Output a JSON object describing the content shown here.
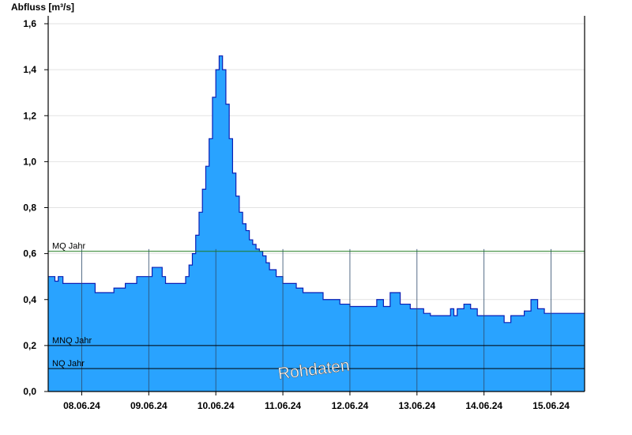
{
  "chart_data": {
    "type": "area",
    "ylabel": "Abfluss [m³/s]",
    "ylim": [
      0,
      1.6
    ],
    "yticks": [
      "0,0",
      "0,2",
      "0,4",
      "0,6",
      "0,8",
      "1,0",
      "1,2",
      "1,4",
      "1,6"
    ],
    "x_categories": [
      "08.06.24",
      "09.06.24",
      "10.06.24",
      "11.06.24",
      "12.06.24",
      "13.06.24",
      "14.06.24",
      "15.06.24"
    ],
    "xlim_days": [
      7.5,
      15.5
    ],
    "series": [
      {
        "x": [
          7.5,
          7.6,
          7.65,
          7.72,
          8.0,
          8.12,
          8.2,
          8.4,
          8.48,
          8.65,
          8.82,
          8.9,
          9.0,
          9.05,
          9.1,
          9.2,
          9.25,
          9.5,
          9.55,
          9.6,
          9.65,
          9.7,
          9.75,
          9.8,
          9.85,
          9.9,
          9.95,
          10.0,
          10.05,
          10.1,
          10.15,
          10.2,
          10.25,
          10.3,
          10.35,
          10.4,
          10.45,
          10.5,
          10.55,
          10.6,
          10.65,
          10.7,
          10.75,
          10.8,
          10.9,
          11.0,
          11.1,
          11.2,
          11.3,
          11.45,
          11.6,
          11.75,
          11.85,
          12.0,
          12.1,
          12.25,
          12.4,
          12.5,
          12.6,
          12.75,
          12.9,
          13.1,
          13.2,
          13.3,
          13.35,
          13.42,
          13.5,
          13.55,
          13.6,
          13.7,
          13.8,
          13.9,
          14.0,
          14.1,
          14.2,
          14.3,
          14.4,
          14.5,
          14.6,
          14.7,
          14.8,
          14.9,
          15.0,
          15.1,
          15.2,
          15.3,
          15.35,
          15.42,
          15.5
        ],
        "values": [
          0.5,
          0.48,
          0.5,
          0.47,
          0.47,
          0.47,
          0.43,
          0.43,
          0.45,
          0.47,
          0.5,
          0.5,
          0.5,
          0.54,
          0.54,
          0.5,
          0.47,
          0.47,
          0.5,
          0.55,
          0.6,
          0.68,
          0.78,
          0.88,
          0.98,
          1.1,
          1.28,
          1.4,
          1.46,
          1.4,
          1.25,
          1.1,
          0.95,
          0.85,
          0.78,
          0.73,
          0.7,
          0.66,
          0.64,
          0.62,
          0.61,
          0.59,
          0.56,
          0.53,
          0.5,
          0.47,
          0.47,
          0.45,
          0.43,
          0.43,
          0.4,
          0.4,
          0.38,
          0.37,
          0.37,
          0.37,
          0.4,
          0.37,
          0.43,
          0.38,
          0.36,
          0.34,
          0.33,
          0.33,
          0.33,
          0.33,
          0.36,
          0.33,
          0.36,
          0.38,
          0.36,
          0.33,
          0.33,
          0.33,
          0.33,
          0.3,
          0.33,
          0.33,
          0.35,
          0.4,
          0.36,
          0.34,
          0.34,
          0.34,
          0.34,
          0.34,
          0.34,
          0.34,
          0.34
        ],
        "color": "#29a3ff",
        "line_color": "#0a1fb5"
      }
    ],
    "reference_lines": [
      {
        "label": "MQ Jahr",
        "value": 0.61,
        "color": "#1f7a1f"
      },
      {
        "label": "MNQ Jahr",
        "value": 0.2,
        "color": "#000000"
      },
      {
        "label": "NQ Jahr",
        "value": 0.1,
        "color": "#000000"
      }
    ],
    "watermark": "Rohdaten",
    "grid": true
  }
}
